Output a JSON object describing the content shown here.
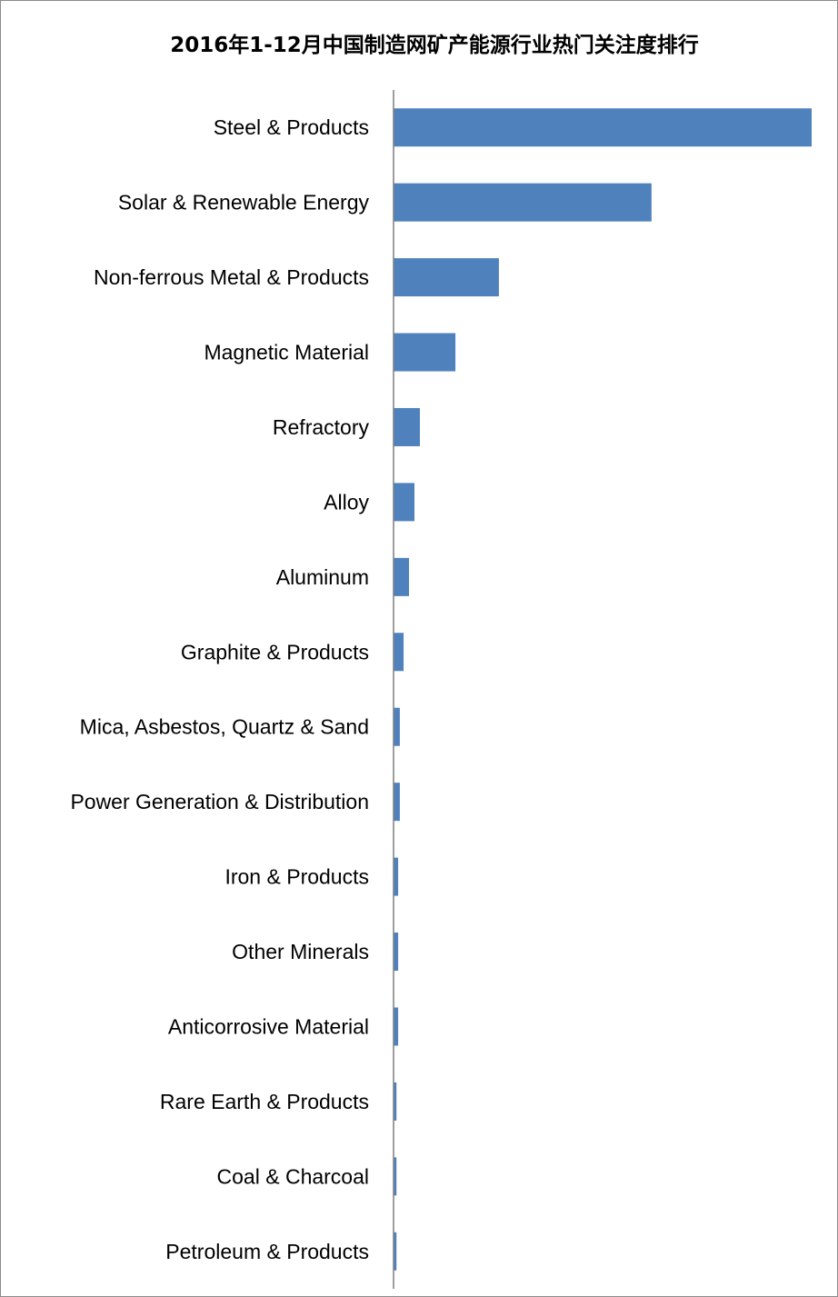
{
  "chart_data": {
    "type": "bar",
    "orientation": "horizontal",
    "title": "2016年1-12月中国制造网矿产能源行业热门关注度排行",
    "xlabel": "",
    "ylabel": "",
    "xlim": [
      0,
      100
    ],
    "categories": [
      "Steel & Products",
      "Solar & Renewable  Energy",
      "Non-ferrous Metal & Products",
      "Magnetic Material",
      "Refractory",
      "Alloy",
      "Aluminum",
      "Graphite & Products",
      "Mica, Asbestos, Quartz & Sand",
      "Power Generation  & Distribution",
      "Iron & Products",
      "Other Minerals",
      "Anticorrosive Material",
      "Rare Earth & Products",
      "Coal & Charcoal",
      "Petroleum & Products"
    ],
    "values": [
      100,
      61.7,
      25.2,
      14.8,
      6.3,
      5.0,
      3.7,
      2.4,
      1.5,
      1.5,
      1.1,
      1.1,
      1.1,
      0.7,
      0.7,
      0.7
    ],
    "bar_color": "#4f81bd",
    "axis_color": "#7f7f7f",
    "grid": false,
    "legend": "none"
  }
}
